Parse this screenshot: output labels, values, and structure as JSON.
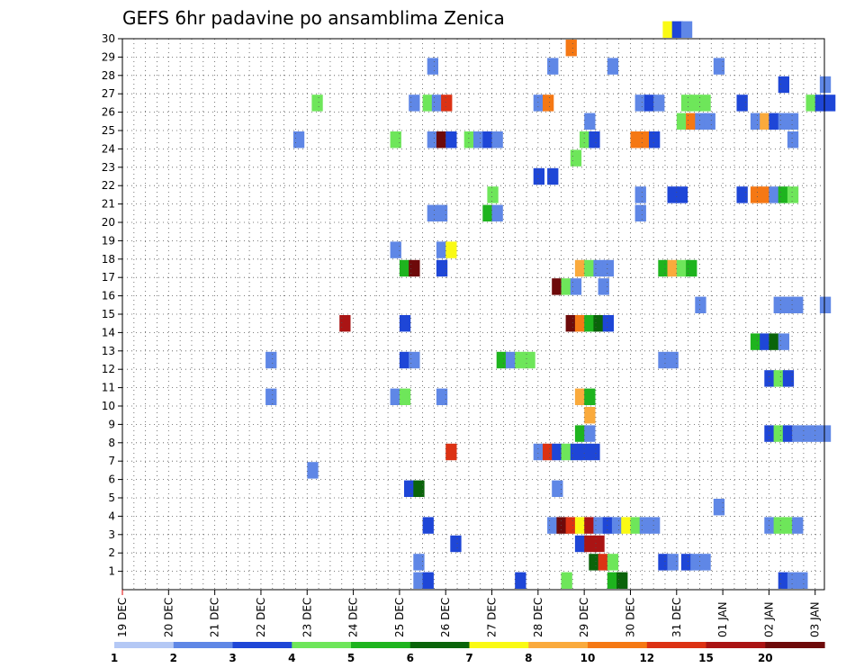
{
  "chart_data": {
    "type": "heatmap",
    "title": "GEFS 6hr padavine po ansamblima Zenica",
    "xlabel": "",
    "ylabel": "",
    "x_tick_labels": [
      "19 DEC",
      "20 DEC",
      "21 DEC",
      "22 DEC",
      "23 DEC",
      "24 DEC",
      "25 DEC",
      "26 DEC",
      "27 DEC",
      "28 DEC",
      "29 DEC",
      "30 DEC",
      "31 DEC",
      "01 JAN",
      "02 JAN",
      "03 JAN"
    ],
    "xlim_days": [
      0,
      15.2
    ],
    "y_tick_labels": [
      "1",
      "2",
      "3",
      "4",
      "5",
      "6",
      "7",
      "8",
      "9",
      "10",
      "11",
      "12",
      "13",
      "14",
      "15",
      "16",
      "17",
      "18",
      "19",
      "20",
      "21",
      "22",
      "23",
      "24",
      "25",
      "26",
      "27",
      "28",
      "29",
      "30"
    ],
    "ylim": [
      0,
      30
    ],
    "grid": true,
    "legend": {
      "placement": "bottom",
      "labels": [
        "1",
        "2",
        "3",
        "4",
        "5",
        "6",
        "7",
        "8",
        "10",
        "12",
        "15",
        "20"
      ],
      "colors": [
        "#b4c8f5",
        "#5f87e6",
        "#1e46d7",
        "#6ee65a",
        "#1eb41e",
        "#0a640a",
        "#fafa14",
        "#faaa3c",
        "#f57814",
        "#dc3214",
        "#aa1414",
        "#6e0a0a"
      ]
    },
    "cells": [
      [
        6.3,
        0,
        1
      ],
      [
        6.5,
        0,
        2
      ],
      [
        8.5,
        0,
        2
      ],
      [
        9.5,
        0,
        3
      ],
      [
        10.5,
        0,
        4
      ],
      [
        10.7,
        0,
        5
      ],
      [
        14.2,
        0,
        2
      ],
      [
        14.4,
        0,
        1
      ],
      [
        14.6,
        0,
        1
      ],
      [
        6.3,
        1,
        1
      ],
      [
        10.1,
        1,
        5
      ],
      [
        10.3,
        1,
        9
      ],
      [
        10.5,
        1,
        3
      ],
      [
        11.6,
        1,
        2
      ],
      [
        11.8,
        1,
        1
      ],
      [
        12.1,
        1,
        2
      ],
      [
        12.3,
        1,
        1
      ],
      [
        12.5,
        1,
        1
      ],
      [
        7.1,
        2,
        2
      ],
      [
        9.8,
        2,
        2
      ],
      [
        10.0,
        2,
        10
      ],
      [
        10.2,
        2,
        10
      ],
      [
        6.5,
        3,
        2
      ],
      [
        9.2,
        3,
        1
      ],
      [
        9.4,
        3,
        11
      ],
      [
        9.6,
        3,
        9
      ],
      [
        9.8,
        3,
        6
      ],
      [
        10.0,
        3,
        10
      ],
      [
        10.2,
        3,
        1
      ],
      [
        10.4,
        3,
        2
      ],
      [
        10.6,
        3,
        1
      ],
      [
        10.8,
        3,
        6
      ],
      [
        11.0,
        3,
        3
      ],
      [
        11.2,
        3,
        1
      ],
      [
        11.4,
        3,
        1
      ],
      [
        13.9,
        3,
        1
      ],
      [
        14.1,
        3,
        3
      ],
      [
        14.3,
        3,
        3
      ],
      [
        14.5,
        3,
        1
      ],
      [
        12.8,
        4,
        1
      ],
      [
        6.1,
        5,
        2
      ],
      [
        6.3,
        5,
        5
      ],
      [
        9.3,
        5,
        1
      ],
      [
        4.0,
        6,
        1
      ],
      [
        7.0,
        7,
        9
      ],
      [
        8.9,
        7,
        1
      ],
      [
        9.1,
        7,
        9
      ],
      [
        9.3,
        7,
        2
      ],
      [
        9.5,
        7,
        3
      ],
      [
        9.7,
        7,
        2
      ],
      [
        9.9,
        7,
        2
      ],
      [
        10.1,
        7,
        2
      ],
      [
        9.8,
        8,
        4
      ],
      [
        10.0,
        8,
        1
      ],
      [
        13.9,
        8,
        2
      ],
      [
        14.1,
        8,
        3
      ],
      [
        14.3,
        8,
        2
      ],
      [
        14.5,
        8,
        1
      ],
      [
        14.7,
        8,
        1
      ],
      [
        14.9,
        8,
        1
      ],
      [
        15.1,
        8,
        1
      ],
      [
        10.0,
        9,
        7
      ],
      [
        3.1,
        10,
        1
      ],
      [
        5.8,
        10,
        1
      ],
      [
        6.0,
        10,
        3
      ],
      [
        6.8,
        10,
        1
      ],
      [
        9.8,
        10,
        7
      ],
      [
        10.0,
        10,
        4
      ],
      [
        13.9,
        11,
        2
      ],
      [
        14.1,
        11,
        3
      ],
      [
        14.3,
        11,
        2
      ],
      [
        3.1,
        12,
        1
      ],
      [
        6.0,
        12,
        2
      ],
      [
        6.2,
        12,
        1
      ],
      [
        8.1,
        12,
        4
      ],
      [
        8.3,
        12,
        1
      ],
      [
        8.5,
        12,
        3
      ],
      [
        8.7,
        12,
        3
      ],
      [
        11.6,
        12,
        1
      ],
      [
        11.8,
        12,
        1
      ],
      [
        13.6,
        13,
        4
      ],
      [
        13.8,
        13,
        2
      ],
      [
        14.0,
        13,
        5
      ],
      [
        14.2,
        13,
        1
      ],
      [
        4.7,
        14,
        10
      ],
      [
        6.0,
        14,
        2
      ],
      [
        9.6,
        14,
        11
      ],
      [
        9.8,
        14,
        8
      ],
      [
        10.0,
        14,
        4
      ],
      [
        10.2,
        14,
        5
      ],
      [
        10.4,
        14,
        2
      ],
      [
        12.4,
        15,
        1
      ],
      [
        14.1,
        15,
        1
      ],
      [
        14.3,
        15,
        1
      ],
      [
        14.5,
        15,
        1
      ],
      [
        15.1,
        15,
        1
      ],
      [
        9.3,
        16,
        11
      ],
      [
        9.5,
        16,
        3
      ],
      [
        9.7,
        16,
        1
      ],
      [
        10.3,
        16,
        1
      ],
      [
        6.0,
        17,
        4
      ],
      [
        6.2,
        17,
        11
      ],
      [
        6.8,
        17,
        2
      ],
      [
        9.8,
        17,
        7
      ],
      [
        10.0,
        17,
        3
      ],
      [
        10.2,
        17,
        1
      ],
      [
        10.4,
        17,
        1
      ],
      [
        11.6,
        17,
        4
      ],
      [
        11.8,
        17,
        7
      ],
      [
        12.0,
        17,
        3
      ],
      [
        12.2,
        17,
        4
      ],
      [
        5.8,
        18,
        1
      ],
      [
        6.8,
        18,
        1
      ],
      [
        7.0,
        18,
        6
      ],
      [
        6.6,
        20,
        1
      ],
      [
        6.8,
        20,
        1
      ],
      [
        7.8,
        20,
        4
      ],
      [
        8.0,
        20,
        1
      ],
      [
        11.1,
        20,
        1
      ],
      [
        7.9,
        21,
        3
      ],
      [
        11.1,
        21,
        1
      ],
      [
        11.8,
        21,
        2
      ],
      [
        12.0,
        21,
        2
      ],
      [
        13.3,
        21,
        2
      ],
      [
        13.6,
        21,
        8
      ],
      [
        13.8,
        21,
        8
      ],
      [
        14.0,
        21,
        1
      ],
      [
        14.2,
        21,
        4
      ],
      [
        14.4,
        21,
        3
      ],
      [
        8.9,
        22,
        2
      ],
      [
        9.2,
        22,
        2
      ],
      [
        9.7,
        23,
        3
      ],
      [
        3.7,
        24,
        1
      ],
      [
        5.8,
        24,
        3
      ],
      [
        6.6,
        24,
        1
      ],
      [
        6.8,
        24,
        11
      ],
      [
        7.0,
        24,
        2
      ],
      [
        7.4,
        24,
        3
      ],
      [
        7.6,
        24,
        1
      ],
      [
        7.8,
        24,
        2
      ],
      [
        8.0,
        24,
        1
      ],
      [
        9.9,
        24,
        3
      ],
      [
        10.1,
        24,
        2
      ],
      [
        11.0,
        24,
        8
      ],
      [
        11.2,
        24,
        8
      ],
      [
        11.4,
        24,
        2
      ],
      [
        14.4,
        24,
        1
      ],
      [
        10.0,
        25,
        1
      ],
      [
        12.0,
        25,
        3
      ],
      [
        12.2,
        25,
        8
      ],
      [
        12.4,
        25,
        1
      ],
      [
        12.6,
        25,
        1
      ],
      [
        13.6,
        25,
        1
      ],
      [
        13.8,
        25,
        7
      ],
      [
        14.0,
        25,
        2
      ],
      [
        14.2,
        25,
        1
      ],
      [
        14.4,
        25,
        1
      ],
      [
        4.1,
        26,
        3
      ],
      [
        6.2,
        26,
        1
      ],
      [
        6.5,
        26,
        3
      ],
      [
        6.7,
        26,
        1
      ],
      [
        6.9,
        26,
        9
      ],
      [
        8.9,
        26,
        1
      ],
      [
        9.1,
        26,
        8
      ],
      [
        11.1,
        26,
        1
      ],
      [
        11.3,
        26,
        2
      ],
      [
        11.5,
        26,
        1
      ],
      [
        12.1,
        26,
        3
      ],
      [
        12.3,
        26,
        3
      ],
      [
        12.5,
        26,
        3
      ],
      [
        13.3,
        26,
        2
      ],
      [
        14.8,
        26,
        3
      ],
      [
        15.0,
        26,
        2
      ],
      [
        15.2,
        26,
        2
      ],
      [
        14.2,
        27,
        2
      ],
      [
        15.1,
        27,
        1
      ],
      [
        6.6,
        28,
        1
      ],
      [
        9.2,
        28,
        1
      ],
      [
        10.5,
        28,
        1
      ],
      [
        12.8,
        28,
        1
      ],
      [
        9.6,
        29,
        8
      ],
      [
        11.7,
        30,
        6
      ],
      [
        11.9,
        30,
        2
      ],
      [
        12.1,
        30,
        1
      ]
    ]
  }
}
